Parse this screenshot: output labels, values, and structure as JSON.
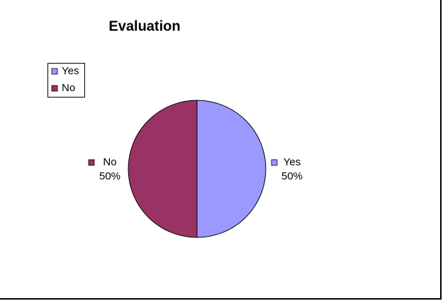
{
  "chart_data": {
    "type": "pie",
    "title": "Evaluation",
    "categories": [
      "Yes",
      "No"
    ],
    "values": [
      50,
      50
    ],
    "value_labels": [
      "50%",
      "50%"
    ],
    "colors": [
      "#9999ff",
      "#993366"
    ],
    "legend": "top-left"
  }
}
